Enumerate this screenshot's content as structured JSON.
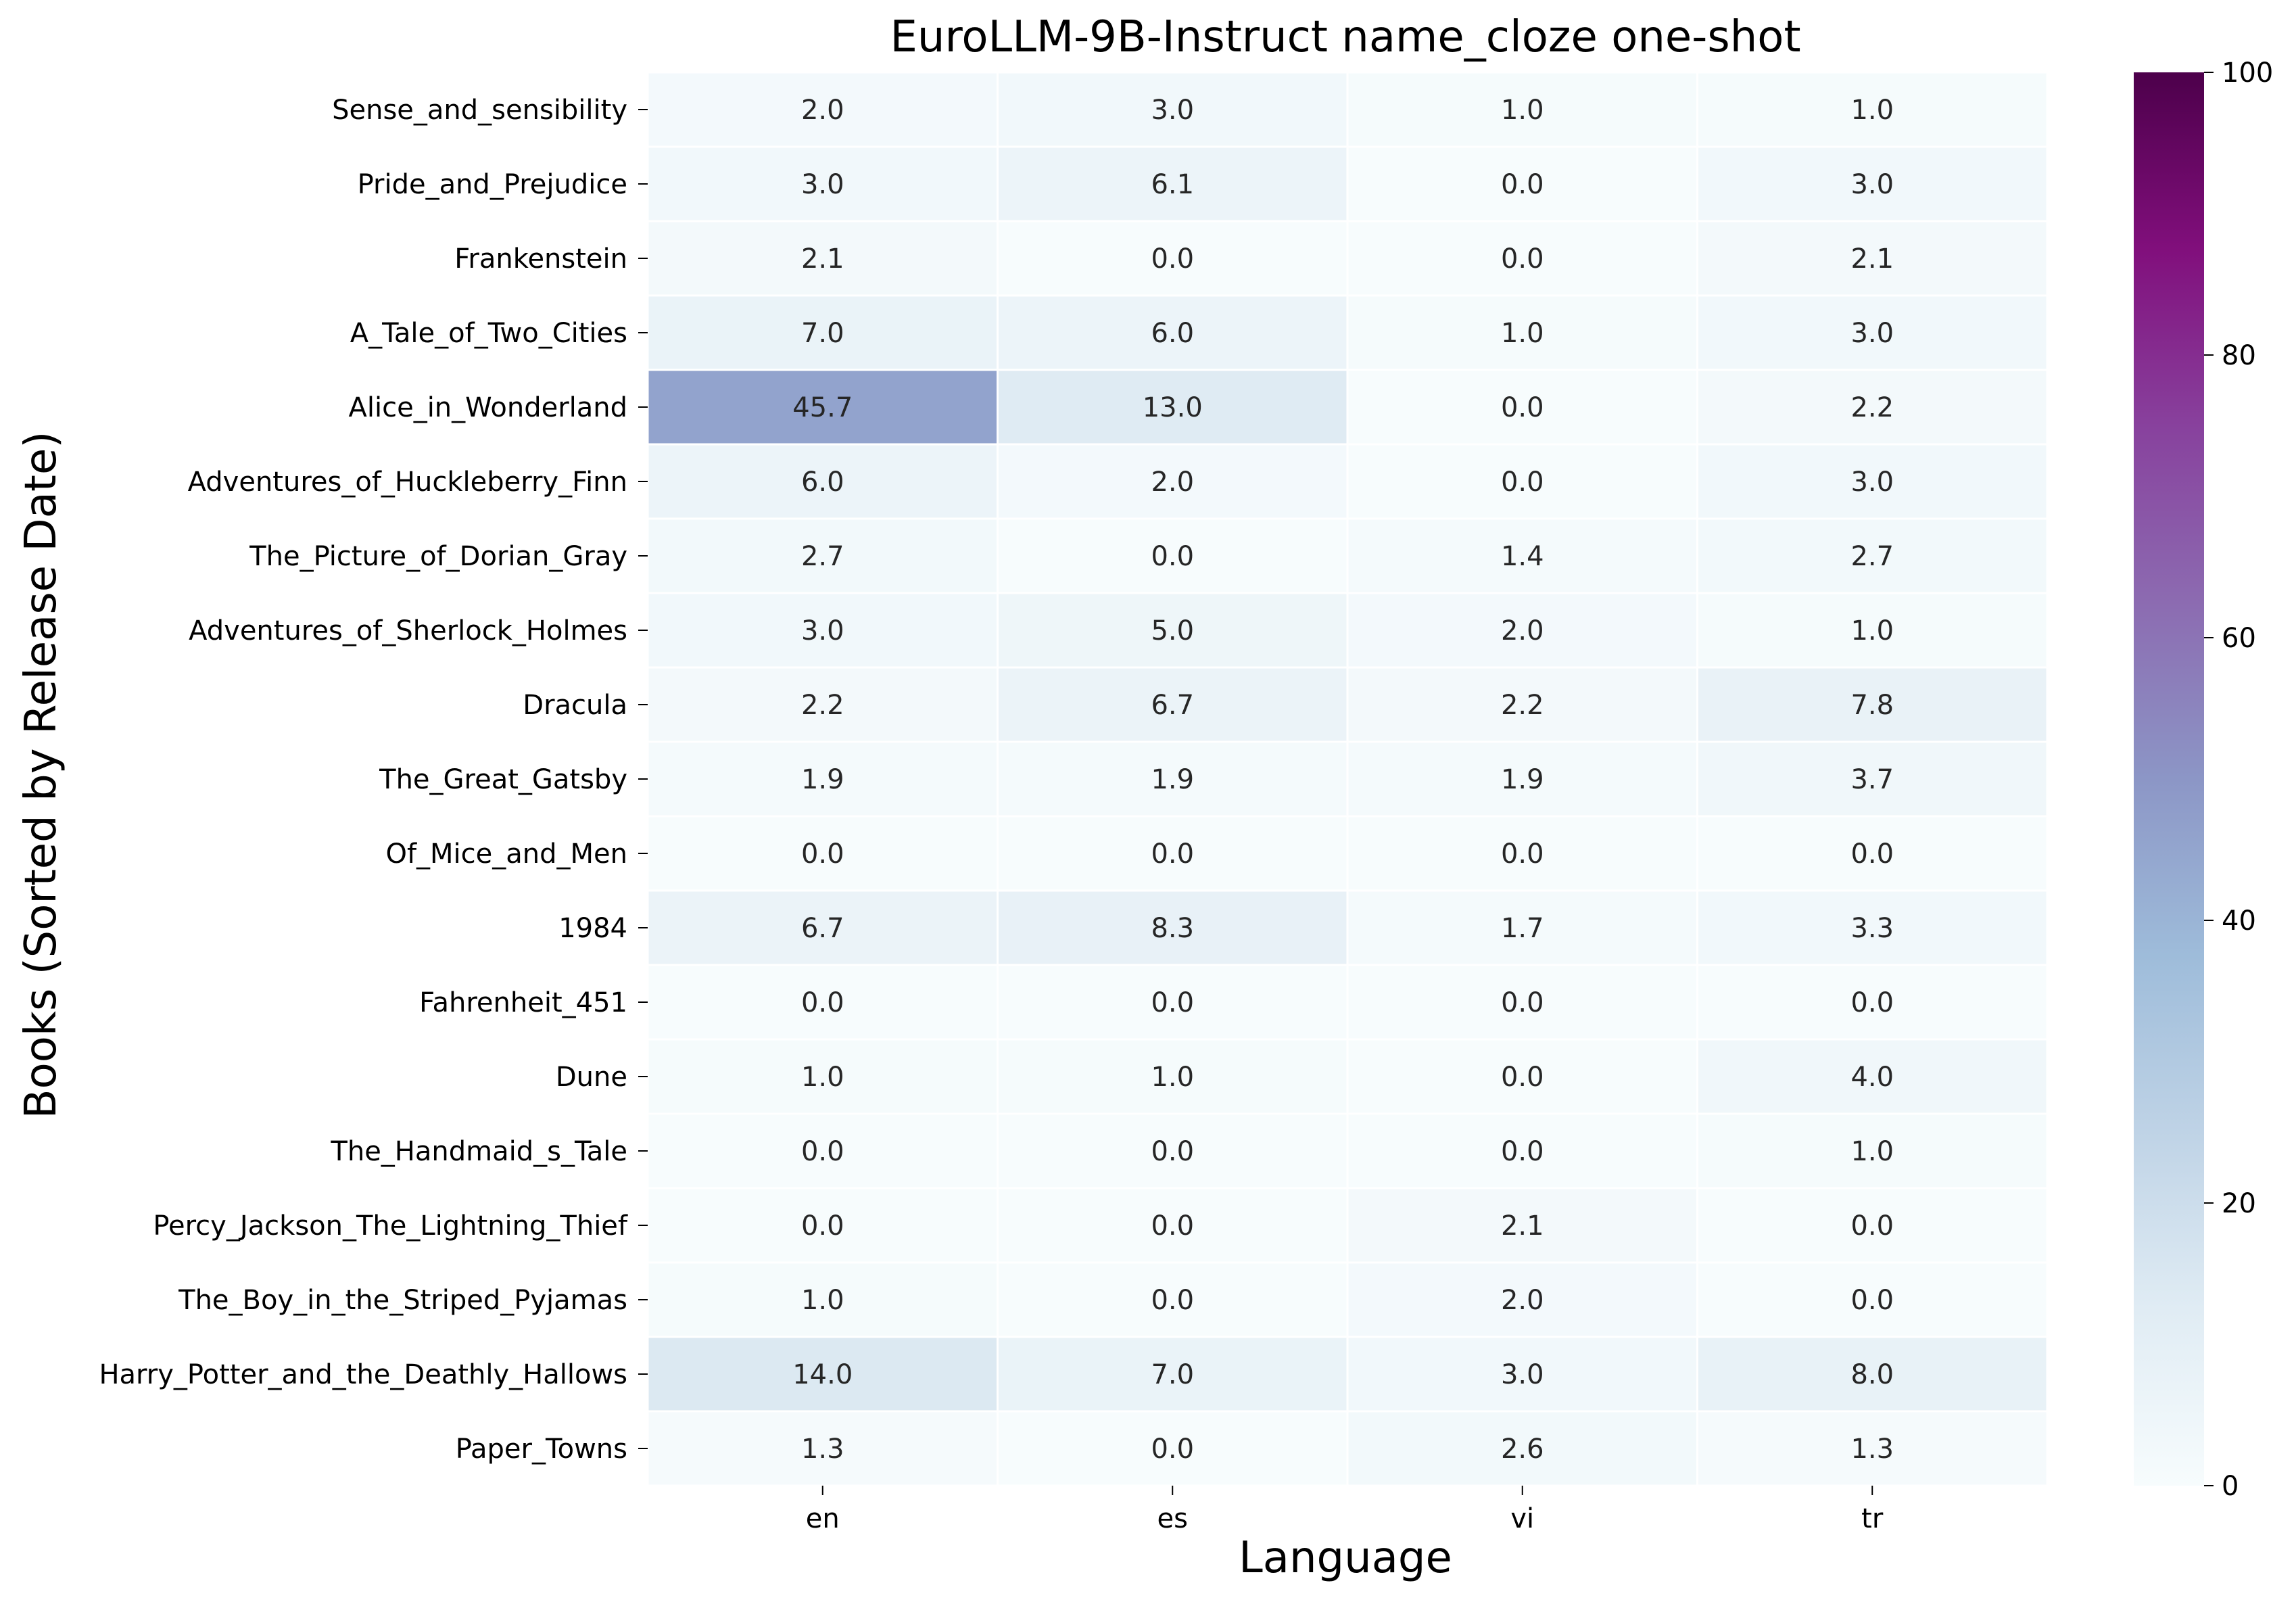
{
  "chart_data": {
    "type": "heatmap",
    "title": "EuroLLM-9B-Instruct name_cloze one-shot",
    "xlabel": "Language",
    "ylabel": "Books (Sorted by Release Date)",
    "columns": [
      "en",
      "es",
      "vi",
      "tr"
    ],
    "rows": [
      "Sense_and_sensibility",
      "Pride_and_Prejudice",
      "Frankenstein",
      "A_Tale_of_Two_Cities",
      "Alice_in_Wonderland",
      "Adventures_of_Huckleberry_Finn",
      "The_Picture_of_Dorian_Gray",
      "Adventures_of_Sherlock_Holmes",
      "Dracula",
      "The_Great_Gatsby",
      "Of_Mice_and_Men",
      "1984",
      "Fahrenheit_451",
      "Dune",
      "The_Handmaid_s_Tale",
      "Percy_Jackson_The_Lightning_Thief",
      "The_Boy_in_the_Striped_Pyjamas",
      "Harry_Potter_and_the_Deathly_Hallows",
      "Paper_Towns"
    ],
    "values": [
      [
        2.0,
        3.0,
        1.0,
        1.0
      ],
      [
        3.0,
        6.1,
        0.0,
        3.0
      ],
      [
        2.1,
        0.0,
        0.0,
        2.1
      ],
      [
        7.0,
        6.0,
        1.0,
        3.0
      ],
      [
        45.7,
        13.0,
        0.0,
        2.2
      ],
      [
        6.0,
        2.0,
        0.0,
        3.0
      ],
      [
        2.7,
        0.0,
        1.4,
        2.7
      ],
      [
        3.0,
        5.0,
        2.0,
        1.0
      ],
      [
        2.2,
        6.7,
        2.2,
        7.8
      ],
      [
        1.9,
        1.9,
        1.9,
        3.7
      ],
      [
        0.0,
        0.0,
        0.0,
        0.0
      ],
      [
        6.7,
        8.3,
        1.7,
        3.3
      ],
      [
        0.0,
        0.0,
        0.0,
        0.0
      ],
      [
        1.0,
        1.0,
        0.0,
        4.0
      ],
      [
        0.0,
        0.0,
        0.0,
        1.0
      ],
      [
        0.0,
        0.0,
        2.1,
        0.0
      ],
      [
        1.0,
        0.0,
        2.0,
        0.0
      ],
      [
        14.0,
        7.0,
        3.0,
        8.0
      ],
      [
        1.3,
        0.0,
        2.6,
        1.3
      ]
    ],
    "colorbar": {
      "range": [
        0,
        100
      ],
      "ticks": [
        0,
        20,
        40,
        60,
        80,
        100
      ],
      "colormap": "BuPu",
      "colors": [
        "#f7fcfd",
        "#e0ecf4",
        "#bfd3e6",
        "#9ebcda",
        "#8c96c6",
        "#8c6bb1",
        "#88419d",
        "#810f7c",
        "#4d004b"
      ]
    },
    "value_format": "1 decimal",
    "grid": false
  }
}
